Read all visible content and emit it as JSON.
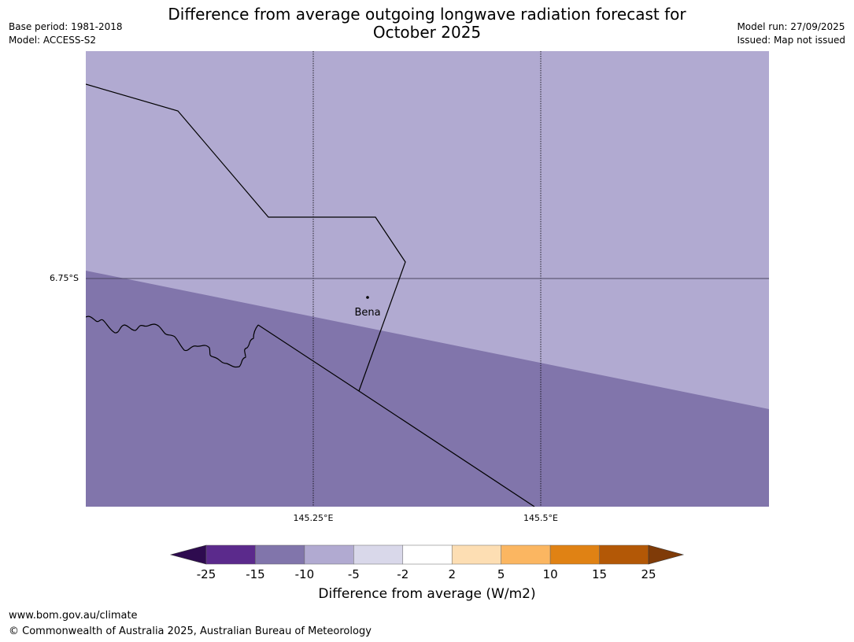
{
  "header": {
    "title": "Difference from average outgoing longwave radiation forecast for October 2025",
    "base_period": "Base period: 1981-2018",
    "model": "Model: ACCESS-S2",
    "model_run": "Model run: 27/09/2025",
    "issued": "Issued: Map not issued"
  },
  "map": {
    "place_label": "Bena",
    "lat_label": "6.75°S",
    "lon_labels": [
      "145.25°E",
      "145.5°E"
    ],
    "colors": {
      "light_band": "#b1aad1",
      "dark_band": "#8175ab",
      "border_line": "#000000"
    }
  },
  "legend": {
    "title": "Difference from average (W/m2)",
    "ticks": [
      "-25",
      "-15",
      "-10",
      "-5",
      "-2",
      "2",
      "5",
      "10",
      "15",
      "25"
    ],
    "colors": [
      "#2e0b4f",
      "#5b2a8c",
      "#8175ab",
      "#b1aad1",
      "#d9d8ea",
      "#ffffff",
      "#fddeb3",
      "#fbb661",
      "#e08214",
      "#b35806",
      "#7f3b08"
    ]
  },
  "footer": {
    "url": "www.bom.gov.au/climate",
    "copyright": "© Commonwealth of Australia 2025, Australian Bureau of Meteorology"
  }
}
